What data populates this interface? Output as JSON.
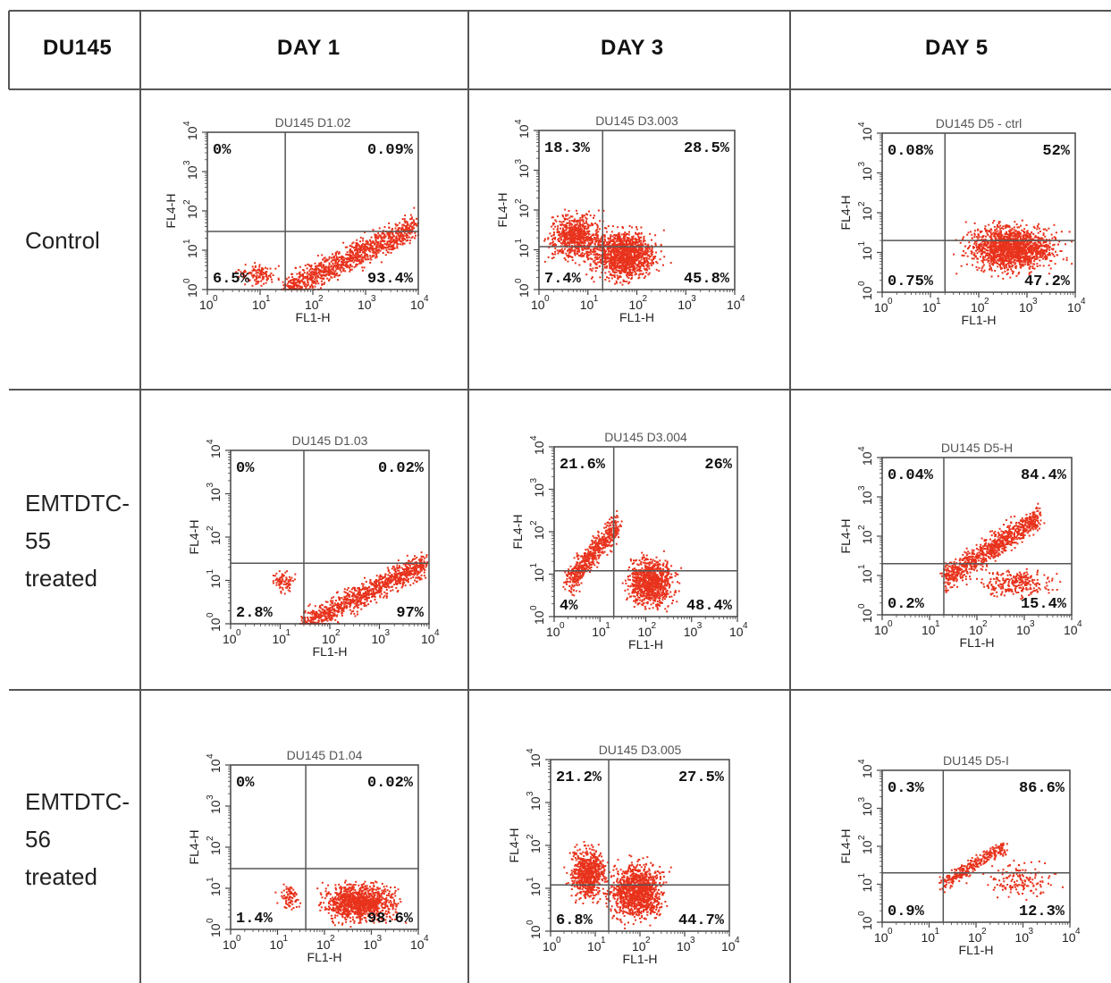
{
  "table": {
    "corner": "DU145",
    "columns": [
      "DAY 1",
      "DAY 3",
      "DAY 5"
    ],
    "rows": [
      {
        "label_lines": [
          "Control"
        ]
      },
      {
        "label_lines": [
          "EMTDTC-",
          "55",
          "treated"
        ]
      },
      {
        "label_lines": [
          "EMTDTC-",
          "56",
          "treated"
        ]
      }
    ]
  },
  "colors": {
    "dots": "#e8321c",
    "grid": "#555555",
    "frame": "#444444"
  },
  "chart_data": [
    {
      "type": "scatter",
      "title": "DU145 D1.02",
      "xlabel": "FL1-H",
      "ylabel": "FL4-H",
      "scale": "log",
      "xlim": [
        1,
        10000
      ],
      "ylim": [
        1,
        10000
      ],
      "tick_labels": [
        "10",
        "0",
        "10",
        "1",
        "10",
        "2",
        "10",
        "3",
        "10",
        "4"
      ],
      "gate": {
        "x": 30,
        "y": 30
      },
      "quadrants": {
        "UL": "0%",
        "UR": "0.09%",
        "LL": "6.5%",
        "LR": "93.4%"
      },
      "clusters": [
        {
          "x": [
            30,
            9000
          ],
          "y": [
            1,
            40
          ],
          "n": 1100,
          "shape": "diag"
        },
        {
          "x": [
            3,
            30
          ],
          "y": [
            1,
            6
          ],
          "n": 120,
          "shape": "blob"
        }
      ]
    },
    {
      "type": "scatter",
      "title": "DU145 D3.003",
      "xlabel": "FL1-H",
      "ylabel": "FL4-H",
      "scale": "log",
      "xlim": [
        1,
        10000
      ],
      "ylim": [
        1,
        10000
      ],
      "tick_labels": [
        "10",
        "0",
        "10",
        "1",
        "10",
        "2",
        "10",
        "3",
        "10",
        "4"
      ],
      "gate": {
        "x": 20,
        "y": 12
      },
      "quadrants": {
        "UL": "18.3%",
        "UR": "28.5%",
        "LL": "7.4%",
        "LR": "45.8%"
      },
      "clusters": [
        {
          "x": [
            1,
            30
          ],
          "y": [
            3,
            150
          ],
          "n": 700,
          "shape": "blob"
        },
        {
          "x": [
            6,
            500
          ],
          "y": [
            1,
            60
          ],
          "n": 1300,
          "shape": "blob"
        }
      ]
    },
    {
      "type": "scatter",
      "title": "DU145 D5 - ctrl",
      "xlabel": "FL1-H",
      "ylabel": "FL4-H",
      "scale": "log",
      "xlim": [
        1,
        10000
      ],
      "ylim": [
        1,
        10000
      ],
      "tick_labels": [
        "10",
        "0",
        "10",
        "1",
        "10",
        "2",
        "10",
        "3",
        "10",
        "4"
      ],
      "gate": {
        "x": 20,
        "y": 20
      },
      "quadrants": {
        "UL": "0.08%",
        "UR": "52%",
        "LL": "0.75%",
        "LR": "47.2%"
      },
      "clusters": [
        {
          "x": [
            25,
            10000
          ],
          "y": [
            2,
            80
          ],
          "n": 1500,
          "shape": "blob"
        }
      ]
    },
    {
      "type": "scatter",
      "title": "DU145 D1.03",
      "xlabel": "FL1-H",
      "ylabel": "FL4-H",
      "scale": "log",
      "xlim": [
        1,
        10000
      ],
      "ylim": [
        1,
        10000
      ],
      "tick_labels": [
        "10",
        "0",
        "10",
        "1",
        "10",
        "2",
        "10",
        "3",
        "10",
        "4"
      ],
      "gate": {
        "x": 30,
        "y": 25
      },
      "quadrants": {
        "UL": "0%",
        "UR": "0.02%",
        "LL": "2.8%",
        "LR": "97%"
      },
      "clusters": [
        {
          "x": [
            30,
            9000
          ],
          "y": [
            1,
            25
          ],
          "n": 1000,
          "shape": "diag"
        },
        {
          "x": [
            5,
            30
          ],
          "y": [
            4,
            20
          ],
          "n": 80,
          "shape": "blob"
        }
      ]
    },
    {
      "type": "scatter",
      "title": "DU145 D3.004",
      "xlabel": "FL1-H",
      "ylabel": "FL4-H",
      "scale": "log",
      "xlim": [
        1,
        10000
      ],
      "ylim": [
        1,
        10000
      ],
      "tick_labels": [
        "10",
        "0",
        "10",
        "1",
        "10",
        "2",
        "10",
        "3",
        "10",
        "4"
      ],
      "gate": {
        "x": 20,
        "y": 12
      },
      "quadrants": {
        "UL": "21.6%",
        "UR": "26%",
        "LL": "4%",
        "LR": "48.4%"
      },
      "clusters": [
        {
          "x": [
            2,
            25
          ],
          "y": [
            6,
            150
          ],
          "n": 600,
          "shape": "diag"
        },
        {
          "x": [
            25,
            700
          ],
          "y": [
            1,
            40
          ],
          "n": 900,
          "shape": "blob"
        }
      ]
    },
    {
      "type": "scatter",
      "title": "DU145 D5-H",
      "xlabel": "FL1-H",
      "ylabel": "FL4-H",
      "scale": "log",
      "xlim": [
        1,
        10000
      ],
      "ylim": [
        1,
        10000
      ],
      "tick_labels": [
        "10",
        "0",
        "10",
        "1",
        "10",
        "2",
        "10",
        "3",
        "10",
        "4"
      ],
      "gate": {
        "x": 20,
        "y": 20
      },
      "quadrants": {
        "UL": "0.04%",
        "UR": "84.4%",
        "LL": "0.2%",
        "LR": "15.4%"
      },
      "clusters": [
        {
          "x": [
            20,
            2000
          ],
          "y": [
            8,
            300
          ],
          "n": 900,
          "shape": "diag"
        },
        {
          "x": [
            50,
            8000
          ],
          "y": [
            2,
            20
          ],
          "n": 250,
          "shape": "blob"
        }
      ]
    },
    {
      "type": "scatter",
      "title": "DU145 D1.04",
      "xlabel": "FL1-H",
      "ylabel": "FL4-H",
      "scale": "log",
      "xlim": [
        1,
        10000
      ],
      "ylim": [
        1,
        10000
      ],
      "tick_labels": [
        "10",
        "0",
        "10",
        "1",
        "10",
        "2",
        "10",
        "3",
        "10",
        "4"
      ],
      "gate": {
        "x": 40,
        "y": 30
      },
      "quadrants": {
        "UL": "0%",
        "UR": "0.02%",
        "LL": "1.4%",
        "LR": "98.6%"
      },
      "clusters": [
        {
          "x": [
            40,
            8000
          ],
          "y": [
            1,
            20
          ],
          "n": 1100,
          "shape": "blob"
        },
        {
          "x": [
            8,
            40
          ],
          "y": [
            2,
            20
          ],
          "n": 80,
          "shape": "blob"
        }
      ]
    },
    {
      "type": "scatter",
      "title": "DU145 D3.005",
      "xlabel": "FL1-H",
      "ylabel": "FL4-H",
      "scale": "log",
      "xlim": [
        1,
        10000
      ],
      "ylim": [
        1,
        10000
      ],
      "tick_labels": [
        "10",
        "0",
        "10",
        "1",
        "10",
        "2",
        "10",
        "3",
        "10",
        "4"
      ],
      "gate": {
        "x": 20,
        "y": 12
      },
      "quadrants": {
        "UL": "21.2%",
        "UR": "27.5%",
        "LL": "6.8%",
        "LR": "44.7%"
      },
      "clusters": [
        {
          "x": [
            2,
            25
          ],
          "y": [
            3,
            150
          ],
          "n": 700,
          "shape": "blob"
        },
        {
          "x": [
            12,
            600
          ],
          "y": [
            1,
            70
          ],
          "n": 1200,
          "shape": "blob"
        }
      ]
    },
    {
      "type": "scatter",
      "title": "DU145 D5-I",
      "xlabel": "FL1-H",
      "ylabel": "FL4-H",
      "scale": "log",
      "xlim": [
        1,
        10000
      ],
      "ylim": [
        1,
        10000
      ],
      "tick_labels": [
        "10",
        "0",
        "10",
        "1",
        "10",
        "2",
        "10",
        "3",
        "10",
        "4"
      ],
      "gate": {
        "x": 20,
        "y": 20
      },
      "quadrants": {
        "UL": "0.3%",
        "UR": "86.6%",
        "LL": "0.9%",
        "LR": "12.3%"
      },
      "clusters": [
        {
          "x": [
            20,
            400
          ],
          "y": [
            10,
            100
          ],
          "n": 300,
          "shape": "diag"
        },
        {
          "x": [
            80,
            9000
          ],
          "y": [
            3,
            60
          ],
          "n": 150,
          "shape": "blob"
        }
      ]
    }
  ]
}
